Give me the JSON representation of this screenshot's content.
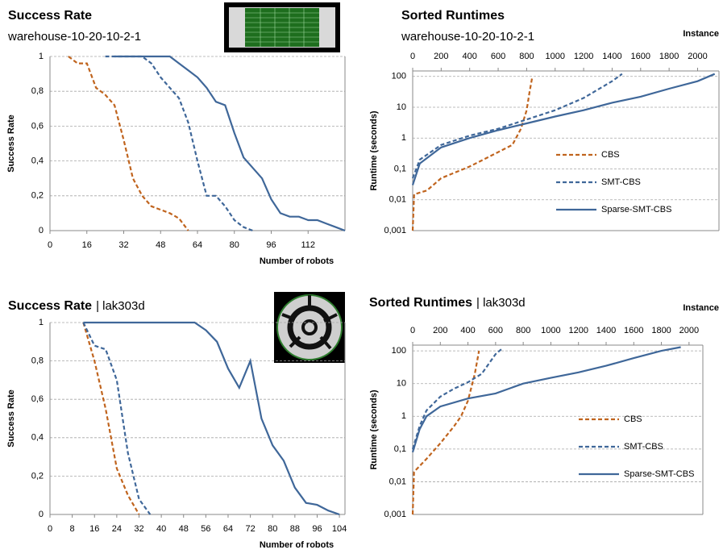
{
  "chart_data": [
    {
      "type": "line",
      "title": "Success Rate",
      "subtitle": "warehouse-10-20-10-2-1",
      "x_label": "Number of robots",
      "y_label": "Success Rate",
      "x": [
        0,
        4,
        8,
        12,
        16,
        20,
        24,
        28,
        32,
        36,
        40,
        44,
        48,
        52,
        56,
        60,
        64,
        68,
        72,
        76,
        80,
        84,
        88,
        92,
        96,
        100,
        104,
        108,
        112,
        116,
        120,
        124,
        128
      ],
      "series": [
        {
          "name": "CBS",
          "color": "#c0641e",
          "dash": true,
          "values": [
            null,
            null,
            1,
            0.96,
            0.96,
            0.82,
            0.78,
            0.72,
            0.52,
            0.3,
            0.2,
            0.14,
            0.12,
            0.1,
            0.07,
            0,
            null,
            null,
            null,
            null,
            null,
            null,
            null,
            null,
            null,
            null,
            null,
            null,
            null,
            null,
            null,
            null,
            null
          ]
        },
        {
          "name": "SMT-CBS",
          "color": "#3f6799",
          "dash": true,
          "values": [
            null,
            null,
            null,
            null,
            null,
            null,
            1,
            1,
            1,
            1,
            1,
            0.96,
            0.88,
            0.82,
            0.76,
            0.62,
            0.4,
            0.2,
            0.2,
            0.14,
            0.06,
            0.02,
            0,
            null,
            null,
            null,
            null,
            null,
            null,
            null,
            null,
            null,
            null
          ]
        },
        {
          "name": "Sparse-SMT-CBS",
          "color": "#3f6799",
          "dash": false,
          "values": [
            null,
            null,
            null,
            null,
            null,
            null,
            null,
            1,
            1,
            1,
            1,
            1,
            1,
            1,
            0.96,
            0.92,
            0.88,
            0.82,
            0.74,
            0.72,
            0.56,
            0.42,
            0.36,
            0.3,
            0.18,
            0.1,
            0.08,
            0.08,
            0.06,
            0.06,
            0.04,
            0.02,
            0
          ]
        }
      ],
      "xlim": [
        0,
        128
      ],
      "xticks": [
        0,
        16,
        32,
        48,
        64,
        80,
        96,
        112
      ],
      "ylim": [
        0,
        1
      ],
      "yticks": [
        0,
        {
          "value": 0.2,
          "label": "0,2"
        },
        {
          "value": 0.4,
          "label": "0,4"
        },
        {
          "value": 0.6,
          "label": "0,6"
        },
        {
          "value": 0.8,
          "label": "0,8"
        },
        1
      ],
      "grid": true,
      "log_y": false,
      "legend": false,
      "x_axis": "bottom"
    },
    {
      "type": "line",
      "title": "Sorted Runtimes",
      "subtitle": "warehouse-10-20-10-2-1",
      "x_label": "Instance",
      "y_label": "Runtime (seconds)",
      "series": [
        {
          "name": "CBS",
          "color": "#c0641e",
          "dash": true,
          "x": [
            0,
            10,
            100,
            200,
            400,
            600,
            700,
            760,
            800,
            820,
            840
          ],
          "values": [
            0.001,
            0.015,
            0.02,
            0.05,
            0.12,
            0.35,
            0.6,
            2,
            8,
            30,
            100
          ]
        },
        {
          "name": "SMT-CBS",
          "color": "#3f6799",
          "dash": true,
          "x": [
            0,
            50,
            200,
            400,
            600,
            800,
            1000,
            1200,
            1400,
            1470
          ],
          "values": [
            0.05,
            0.2,
            0.6,
            1.2,
            2,
            4,
            8,
            20,
            70,
            120
          ]
        },
        {
          "name": "Sparse-SMT-CBS",
          "color": "#3f6799",
          "dash": false,
          "x": [
            0,
            50,
            200,
            400,
            600,
            800,
            1000,
            1200,
            1400,
            1600,
            1800,
            2000,
            2120
          ],
          "values": [
            0.03,
            0.15,
            0.5,
            1,
            1.8,
            3,
            5,
            8,
            14,
            22,
            40,
            70,
            120
          ]
        }
      ],
      "xlim": [
        0,
        2150
      ],
      "xticks": [
        0,
        200,
        400,
        600,
        800,
        1000,
        1200,
        1400,
        1600,
        1800,
        2000
      ],
      "ylim": [
        0.001,
        150
      ],
      "yticks": [
        {
          "value": 0.001,
          "label": "0,001"
        },
        {
          "value": 0.01,
          "label": "0,01"
        },
        {
          "value": 0.1,
          "label": "0,1"
        },
        1,
        10,
        100
      ],
      "grid": true,
      "log_y": true,
      "legend": "right",
      "x_axis": "top"
    },
    {
      "type": "line",
      "title": "Success Rate",
      "subtitle": "| lak303d",
      "x_label": "Number of robots",
      "y_label": "Success Rate",
      "x": [
        0,
        4,
        8,
        12,
        16,
        20,
        24,
        28,
        32,
        36,
        40,
        44,
        48,
        52,
        56,
        60,
        64,
        68,
        72,
        76,
        80,
        84,
        88,
        92,
        96,
        100,
        104
      ],
      "series": [
        {
          "name": "CBS",
          "color": "#c0641e",
          "dash": true,
          "values": [
            null,
            null,
            null,
            1,
            0.8,
            0.55,
            0.24,
            0.1,
            0,
            null,
            null,
            null,
            null,
            null,
            null,
            null,
            null,
            null,
            null,
            null,
            null,
            null,
            null,
            null,
            null,
            null,
            null
          ]
        },
        {
          "name": "SMT-CBS",
          "color": "#3f6799",
          "dash": true,
          "values": [
            null,
            null,
            null,
            1,
            0.88,
            0.86,
            0.7,
            0.32,
            0.08,
            0,
            null,
            null,
            null,
            null,
            null,
            null,
            null,
            null,
            null,
            null,
            null,
            null,
            null,
            null,
            null,
            null,
            null
          ]
        },
        {
          "name": "Sparse-SMT-CBS",
          "color": "#3f6799",
          "dash": false,
          "values": [
            null,
            null,
            null,
            1,
            1,
            1,
            1,
            1,
            1,
            1,
            1,
            1,
            1,
            1,
            0.96,
            0.9,
            0.76,
            0.66,
            0.8,
            0.5,
            0.36,
            0.28,
            0.14,
            0.06,
            0.05,
            0.02,
            0
          ]
        }
      ],
      "xlim": [
        0,
        106
      ],
      "xticks": [
        0,
        8,
        16,
        24,
        32,
        40,
        48,
        56,
        64,
        72,
        80,
        88,
        96,
        104
      ],
      "ylim": [
        0,
        1
      ],
      "yticks": [
        0,
        {
          "value": 0.2,
          "label": "0,2"
        },
        {
          "value": 0.4,
          "label": "0,4"
        },
        {
          "value": 0.6,
          "label": "0,6"
        },
        {
          "value": 0.8,
          "label": "0,8"
        },
        1
      ],
      "grid": true,
      "log_y": false,
      "legend": false,
      "x_axis": "bottom"
    },
    {
      "type": "line",
      "title": "Sorted Runtimes",
      "subtitle": "| lak303d",
      "x_label": "Instance",
      "y_label": "Runtime (seconds)",
      "series": [
        {
          "name": "CBS",
          "color": "#c0641e",
          "dash": true,
          "x": [
            0,
            10,
            100,
            200,
            300,
            350,
            400,
            450,
            480
          ],
          "values": [
            0.001,
            0.02,
            0.05,
            0.15,
            0.5,
            1,
            3,
            20,
            100
          ]
        },
        {
          "name": "SMT-CBS",
          "color": "#3f6799",
          "dash": true,
          "x": [
            0,
            50,
            100,
            200,
            300,
            400,
            500,
            600,
            650
          ],
          "values": [
            0.1,
            0.5,
            1.5,
            4,
            7,
            11,
            20,
            80,
            120
          ]
        },
        {
          "name": "Sparse-SMT-CBS",
          "color": "#3f6799",
          "dash": false,
          "x": [
            0,
            50,
            100,
            200,
            400,
            600,
            800,
            1000,
            1200,
            1400,
            1600,
            1800,
            1940
          ],
          "values": [
            0.08,
            0.4,
            1,
            2,
            3.5,
            5,
            10,
            15,
            22,
            35,
            60,
            100,
            130
          ]
        }
      ],
      "xlim": [
        0,
        2100
      ],
      "xticks": [
        0,
        200,
        400,
        600,
        800,
        1000,
        1200,
        1400,
        1600,
        1800,
        2000
      ],
      "ylim": [
        0.001,
        150
      ],
      "yticks": [
        {
          "value": 0.001,
          "label": "0,001"
        },
        {
          "value": 0.01,
          "label": "0,01"
        },
        {
          "value": 0.1,
          "label": "0,1"
        },
        1,
        10,
        100
      ],
      "grid": true,
      "log_y": true,
      "legend": "right",
      "x_axis": "top"
    }
  ]
}
